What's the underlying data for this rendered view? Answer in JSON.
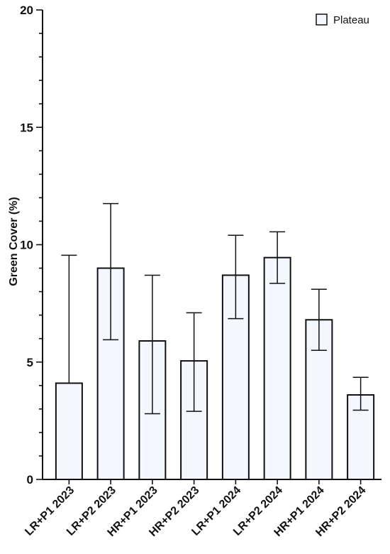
{
  "chart_data": {
    "type": "bar",
    "ylabel": "Green Cover (%)",
    "xlabel": "",
    "ylim": [
      0,
      20
    ],
    "yticks": [
      0,
      5,
      10,
      15,
      20
    ],
    "categories": [
      "LR+P1 2023",
      "LR+P2 2023",
      "HR+P1 2023",
      "HR+P2 2023",
      "LR+P1 2024",
      "LR+P2 2024",
      "HR+P1 2024",
      "HR+P2 2024"
    ],
    "series": [
      {
        "name": "Plateau",
        "values": [
          4.1,
          9.0,
          5.9,
          5.05,
          8.7,
          9.45,
          6.8,
          3.6
        ],
        "error_upper": [
          9.55,
          11.75,
          8.7,
          7.1,
          10.4,
          10.55,
          8.1,
          4.35
        ],
        "error_lower": [
          4.1,
          5.95,
          2.8,
          2.9,
          6.85,
          8.35,
          5.5,
          2.95
        ]
      }
    ],
    "legend": {
      "position": "top-right"
    },
    "grid": false,
    "colors": {
      "bar_fill": "#f5f7ff",
      "bar_stroke": "#111111",
      "axis": "#111111"
    }
  }
}
